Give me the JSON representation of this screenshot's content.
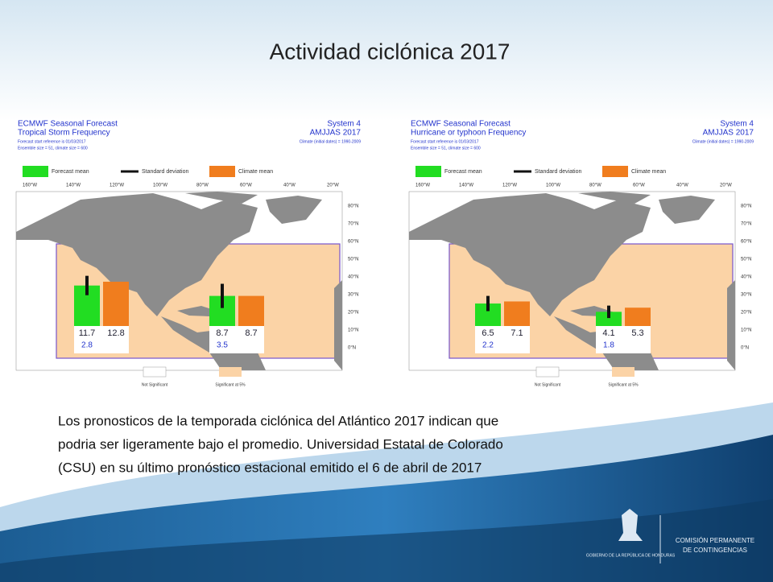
{
  "slide": {
    "title": "Actividad ciclónica 2017",
    "panels": [
      {
        "header": [
          "ECMWF Seasonal Forecast",
          "Tropical Storm Frequency",
          "Forecast start reference is 01/03/2017",
          "Ensemble size = 51, climate size = 600"
        ],
        "system": "System 4",
        "period": "AMJJAS 2017",
        "climate": "Climate (initial dates) = 1990-2009",
        "bars": [
          {
            "forecast": 11.7,
            "sd": 2.8,
            "climate": 12.8
          },
          {
            "forecast": 8.7,
            "sd": 3.5,
            "climate": 8.7
          }
        ]
      },
      {
        "header": [
          "ECMWF Seasonal Forecast",
          "Hurricane or typhoon Frequency",
          "Forecast start reference is 01/03/2017",
          "Ensemble size = 51, climate size = 600"
        ],
        "system": "System 4",
        "period": "AMJJAS 2017",
        "climate": "Climate (initial dates) = 1990-2009",
        "bars": [
          {
            "forecast": 6.5,
            "sd": 2.2,
            "climate": 7.1
          },
          {
            "forecast": 4.1,
            "sd": 1.8,
            "climate": 5.3
          }
        ]
      }
    ],
    "legend": [
      "Forecast mean",
      "Standard deviation",
      "Climate mean"
    ],
    "longitudes": [
      "160°W",
      "140°W",
      "120°W",
      "100°W",
      "80°W",
      "60°W",
      "40°W",
      "20°W"
    ],
    "latitudes": [
      "80°N",
      "70°N",
      "60°N",
      "50°N",
      "40°N",
      "30°N",
      "20°N",
      "10°N",
      "0°N"
    ],
    "significance": [
      "Not Significant",
      "Significant at 5%"
    ],
    "paragraph_lines": [
      "Los pronosticos de la temporada ciclónica del  Atlántico 2017 indican que",
      "podria ser ligeramente bajo el promedio. Universidad Estatal de Colorado",
      "(CSU) en su último pronóstico estacional emitido el 6 de abril de 2017"
    ],
    "logo": {
      "left": "GOBIERNO DE LA REPÚBLICA DE HONDURAS",
      "right": [
        "COMISIÓN PERMANENTE",
        "DE CONTINGENCIAS"
      ]
    }
  }
}
